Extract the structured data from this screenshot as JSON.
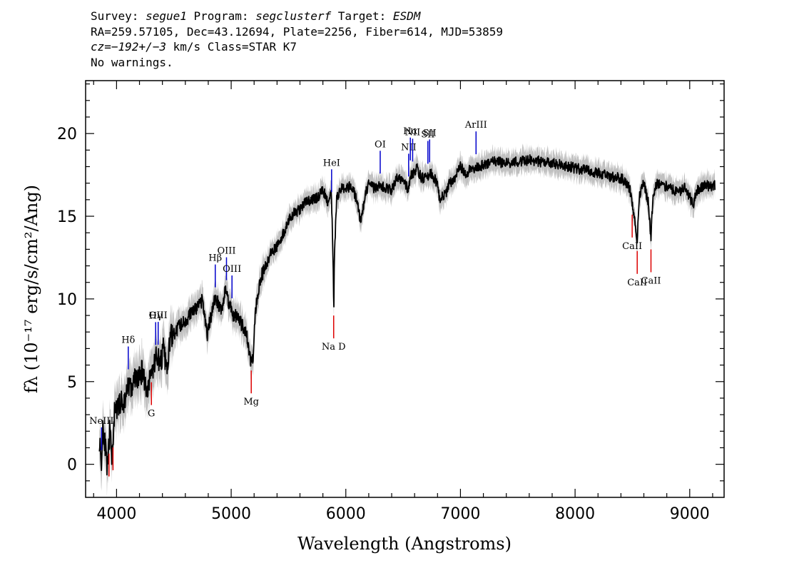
{
  "header": {
    "survey_label": "Survey: ",
    "survey": "segue1",
    "program_label": " Program: ",
    "program": "segclusterf",
    "target_label": " Target: ",
    "target": "ESDM",
    "line2": "RA=259.57105, Dec=43.12694, Plate=2256, Fiber=614, MJD=53859",
    "cz_label": "cz=",
    "cz_value": "−192+/−3",
    "cz_rest": " km/s Class=STAR K7",
    "line4": "No warnings."
  },
  "chart_data": {
    "type": "line",
    "xlabel": "Wavelength (Angstroms)",
    "ylabel": "fλ (10⁻¹⁷ erg/s/cm²/Ang)",
    "xlim": [
      3730,
      9300
    ],
    "ylim": [
      -2.0,
      23.2
    ],
    "xticks": [
      4000,
      5000,
      6000,
      7000,
      8000,
      9000
    ],
    "yticks": [
      0,
      5,
      10,
      15,
      20
    ],
    "colors": {
      "flux": "#000000",
      "error_band": "#c0c0c0",
      "emission": "#0000cc",
      "absorption": "#dd0000"
    },
    "series": [
      {
        "x": [
          3850,
          3870,
          3880,
          3900,
          3920,
          3940,
          3960,
          3980,
          4000,
          4030,
          4060,
          4090,
          4100,
          4130,
          4160,
          4200,
          4230,
          4260,
          4300,
          4330,
          4350,
          4380,
          4410,
          4440,
          4470,
          4500,
          4550,
          4600,
          4650,
          4700,
          4750,
          4790,
          4820,
          4850,
          4880,
          4920,
          4950,
          4980,
          5020,
          5060,
          5100,
          5140,
          5170,
          5190,
          5210,
          5250,
          5300,
          5350,
          5400,
          5450,
          5500,
          5550,
          5600,
          5650,
          5700,
          5750,
          5800,
          5850,
          5870,
          5880,
          5890,
          5895,
          5900,
          5920,
          5950,
          6000,
          6050,
          6100,
          6130,
          6150,
          6180,
          6200,
          6250,
          6300,
          6350,
          6400,
          6450,
          6500,
          6550,
          6563,
          6580,
          6620,
          6660,
          6700,
          6750,
          6800,
          6820,
          6840,
          6870,
          6900,
          6950,
          7000,
          7050,
          7100,
          7150,
          7200,
          7300,
          7400,
          7500,
          7600,
          7700,
          7800,
          7900,
          8000,
          8100,
          8200,
          8300,
          8400,
          8450,
          8480,
          8500,
          8520,
          8542,
          8560,
          8600,
          8640,
          8662,
          8680,
          8720,
          8760,
          8800,
          8850,
          8900,
          8950,
          9000,
          9030,
          9060,
          9100,
          9150,
          9200,
          9220
        ],
        "y": [
          1.5,
          0.0,
          2.5,
          1.2,
          -0.5,
          2.0,
          0.5,
          3.0,
          3.2,
          3.8,
          3.6,
          4.4,
          5.0,
          4.5,
          5.2,
          5.2,
          5.8,
          4.3,
          5.5,
          6.0,
          6.8,
          6.0,
          7.0,
          5.5,
          7.8,
          7.8,
          8.4,
          8.6,
          9.2,
          9.4,
          9.9,
          7.8,
          8.8,
          10.0,
          9.8,
          9.4,
          10.6,
          9.8,
          9.0,
          8.9,
          8.3,
          7.6,
          6.2,
          6.5,
          9.3,
          11.1,
          12.0,
          12.8,
          13.2,
          13.9,
          14.7,
          15.2,
          15.4,
          15.9,
          16.0,
          16.1,
          16.6,
          15.7,
          16.7,
          15.0,
          12.0,
          9.0,
          12.5,
          16.0,
          16.7,
          16.6,
          16.9,
          15.9,
          14.5,
          15.5,
          16.6,
          16.9,
          16.7,
          16.8,
          16.7,
          16.6,
          17.3,
          17.2,
          16.6,
          17.6,
          17.5,
          17.9,
          17.3,
          17.3,
          17.6,
          16.9,
          16.0,
          16.3,
          16.3,
          16.9,
          17.3,
          18.0,
          17.6,
          17.9,
          18.0,
          18.1,
          18.3,
          18.2,
          18.3,
          18.4,
          18.3,
          18.2,
          18.1,
          17.9,
          17.8,
          17.6,
          17.4,
          17.3,
          17.0,
          16.6,
          15.6,
          15.0,
          13.5,
          16.3,
          17.0,
          15.8,
          13.6,
          16.4,
          17.0,
          16.9,
          16.8,
          16.6,
          16.4,
          16.8,
          16.2,
          15.6,
          16.5,
          16.8,
          16.9,
          16.7,
          16.9
        ]
      }
    ],
    "emission_lines": [
      {
        "label": "NeIII",
        "x": 3869
      },
      {
        "label": "Hδ",
        "x": 4102
      },
      {
        "label": "Hγ",
        "x": 4341
      },
      {
        "label": "OIII",
        "x": 4363
      },
      {
        "label": "Hβ",
        "x": 4861
      },
      {
        "label": "OIII",
        "x": 4959
      },
      {
        "label": "OIII",
        "x": 5007
      },
      {
        "label": "HeI",
        "x": 5876
      },
      {
        "label": "OI",
        "x": 6300
      },
      {
        "label": "NII",
        "x": 6548
      },
      {
        "label": "Hα",
        "x": 6563
      },
      {
        "label": "NII",
        "x": 6583
      },
      {
        "label": "SII",
        "x": 6716
      },
      {
        "label": "SII",
        "x": 6731
      },
      {
        "label": "ArIII",
        "x": 7136
      }
    ],
    "absorption_lines": [
      {
        "label": "G",
        "x": 4304
      },
      {
        "label": "Mg",
        "x": 5175
      },
      {
        "label": "Na D",
        "x": 5894
      },
      {
        "label": "CaII",
        "x": 8498
      },
      {
        "label": "CaII",
        "x": 8542
      },
      {
        "label": "CaII",
        "x": 8662
      },
      {
        "label": "",
        "x": 3934
      },
      {
        "label": "",
        "x": 3969
      }
    ]
  }
}
